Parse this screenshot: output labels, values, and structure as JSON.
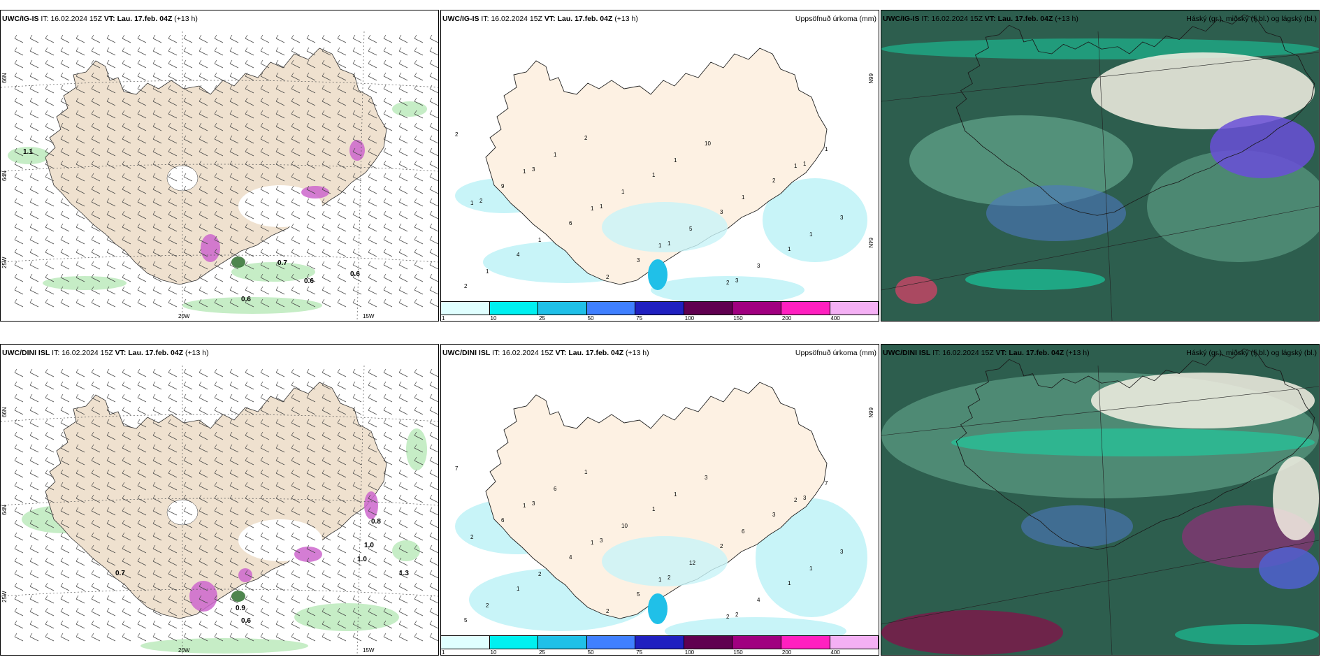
{
  "panels": [
    {
      "model": "UWC/IG-IS",
      "it_label": "IT:",
      "it_value": "16.02.2024 15Z",
      "vt_label": "VT:",
      "vt_value": "Lau. 17.feb. 04Z",
      "lead": "(+13 h)",
      "right_title": "",
      "kind": "wind",
      "lat_labels": [
        "66N",
        "64N",
        "25W"
      ],
      "lon_labels": [
        "20W",
        "15W"
      ],
      "values": [
        "1.1",
        "0.7",
        "0.6",
        "0.6",
        "0.6"
      ]
    },
    {
      "model": "UWC/IG-IS",
      "it_label": "IT:",
      "it_value": "16.02.2024 15Z",
      "vt_label": "VT:",
      "vt_value": "Lau. 17.feb. 04Z",
      "lead": "(+13 h)",
      "right_title": "Uppsöfnuð úrkoma (mm)",
      "kind": "precip",
      "side_labels": [
        "66N",
        "64N"
      ],
      "values": [
        "2",
        "1",
        "1",
        "1",
        "2",
        "1",
        "1",
        "1",
        "2",
        "1",
        "1",
        "1",
        "1",
        "1",
        "1",
        "5",
        "3",
        "1",
        "9",
        "6",
        "3",
        "10",
        "2",
        "3",
        "4",
        "2",
        "1",
        "3",
        "1",
        "2",
        "3",
        "1",
        "1",
        "3",
        "1",
        "2"
      ]
    },
    {
      "model": "UWC/IG-IS",
      "it_label": "IT:",
      "it_value": "16.02.2024 15Z",
      "vt_label": "VT:",
      "vt_value": "Lau. 17.feb. 04Z",
      "lead": "(+13 h)",
      "right_title": "Háský (gr.), miðský (fj.bl.) og lágský (bl.)",
      "kind": "cloud"
    },
    {
      "model": "UWC/DINI ISL",
      "it_label": "IT:",
      "it_value": "16.02.2024 15Z",
      "vt_label": "VT:",
      "vt_value": "Lau. 17.feb. 04Z",
      "lead": "(+13 h)",
      "right_title": "",
      "kind": "wind",
      "lat_labels": [
        "66N",
        "64N",
        "25W"
      ],
      "lon_labels": [
        "20W",
        "15W"
      ],
      "values": [
        "0.7",
        "0.9",
        "0.6",
        "1.0",
        "0.8",
        "1.0",
        "1.3"
      ]
    },
    {
      "model": "UWC/DINI ISL",
      "it_label": "IT:",
      "it_value": "16.02.2024 15Z",
      "vt_label": "VT:",
      "vt_value": "Lau. 17.feb. 04Z",
      "lead": "(+13 h)",
      "right_title": "Uppsöfnuð úrkoma (mm)",
      "kind": "precip",
      "side_labels": [
        "66N"
      ],
      "values": [
        "7",
        "1",
        "1",
        "1",
        "2",
        "2",
        "2",
        "2",
        "2",
        "1",
        "6",
        "1",
        "2",
        "6",
        "10",
        "12",
        "4",
        "7",
        "6",
        "4",
        "5",
        "3",
        "3",
        "3",
        "1",
        "1",
        "1",
        "2",
        "1",
        "5",
        "3",
        "3",
        "2",
        "2",
        "3"
      ]
    },
    {
      "model": "UWC/DINI ISL",
      "it_label": "IT:",
      "it_value": "16.02.2024 15Z",
      "vt_label": "VT:",
      "vt_value": "Lau. 17.feb. 04Z",
      "lead": "(+13 h)",
      "right_title": "Háský (gr.), miðský (fj.bl.) og lágský (bl.)",
      "kind": "cloud"
    }
  ],
  "colorbar": {
    "labels": [
      "1",
      "10",
      "25",
      "50",
      "75",
      "100",
      "150",
      "200",
      "400"
    ],
    "colors": [
      "#e0ffff",
      "#00f0f0",
      "#20c0e8",
      "#4080ff",
      "#2020c0",
      "#600050",
      "#a00080",
      "#ff20c0",
      "#f4b0f4"
    ]
  },
  "colors": {
    "land": "#efe1cf",
    "land_precip": "#fdf1e3",
    "sea_precip": "#c8f4f8",
    "cloud_dark": "#2a5a4a",
    "cloud_mid": "#4f8e78",
    "cloud_cyan": "#15d8a8"
  }
}
